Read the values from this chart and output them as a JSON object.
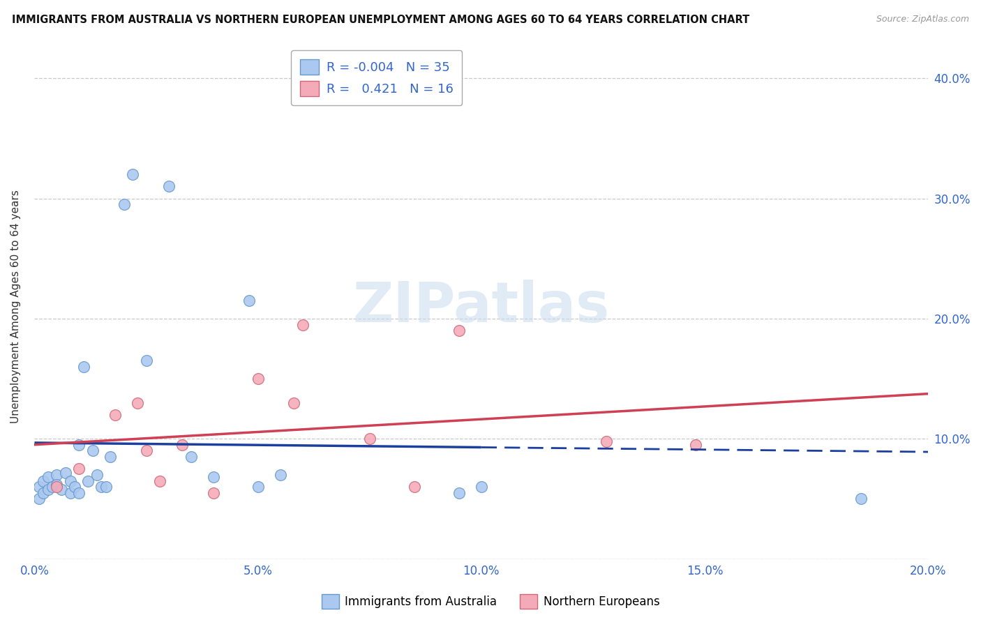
{
  "title": "IMMIGRANTS FROM AUSTRALIA VS NORTHERN EUROPEAN UNEMPLOYMENT AMONG AGES 60 TO 64 YEARS CORRELATION CHART",
  "source": "Source: ZipAtlas.com",
  "ylabel": "Unemployment Among Ages 60 to 64 years",
  "xlim": [
    0.0,
    0.2
  ],
  "ylim": [
    0.0,
    0.42
  ],
  "xticks": [
    0.0,
    0.05,
    0.1,
    0.15,
    0.2
  ],
  "yticks": [
    0.0,
    0.1,
    0.2,
    0.3,
    0.4
  ],
  "xtick_labels": [
    "0.0%",
    "5.0%",
    "10.0%",
    "15.0%",
    "20.0%"
  ],
  "ytick_labels_left": [
    "",
    "",
    "",
    "",
    ""
  ],
  "ytick_labels_right": [
    "",
    "10.0%",
    "20.0%",
    "30.0%",
    "40.0%"
  ],
  "grid_color": "#c8c8c8",
  "background_color": "#ffffff",
  "watermark_text": "ZIPatlas",
  "legend_label_blue": "Immigrants from Australia",
  "legend_label_pink": "Northern Europeans",
  "R_blue": "-0.004",
  "N_blue": "35",
  "R_pink": "0.421",
  "N_pink": "16",
  "blue_scatter_x": [
    0.001,
    0.001,
    0.002,
    0.002,
    0.003,
    0.003,
    0.004,
    0.005,
    0.005,
    0.006,
    0.007,
    0.008,
    0.008,
    0.009,
    0.01,
    0.01,
    0.011,
    0.012,
    0.013,
    0.014,
    0.015,
    0.016,
    0.017,
    0.02,
    0.022,
    0.025,
    0.03,
    0.035,
    0.04,
    0.048,
    0.05,
    0.055,
    0.095,
    0.1,
    0.185
  ],
  "blue_scatter_y": [
    0.06,
    0.05,
    0.065,
    0.055,
    0.058,
    0.068,
    0.06,
    0.07,
    0.062,
    0.058,
    0.072,
    0.055,
    0.065,
    0.06,
    0.055,
    0.095,
    0.16,
    0.065,
    0.09,
    0.07,
    0.06,
    0.06,
    0.085,
    0.295,
    0.32,
    0.165,
    0.31,
    0.085,
    0.068,
    0.215,
    0.06,
    0.07,
    0.055,
    0.06,
    0.05
  ],
  "pink_scatter_x": [
    0.005,
    0.01,
    0.018,
    0.023,
    0.025,
    0.028,
    0.033,
    0.04,
    0.05,
    0.058,
    0.06,
    0.075,
    0.085,
    0.095,
    0.128,
    0.148
  ],
  "pink_scatter_y": [
    0.06,
    0.075,
    0.12,
    0.13,
    0.09,
    0.065,
    0.095,
    0.055,
    0.15,
    0.13,
    0.195,
    0.1,
    0.06,
    0.19,
    0.098,
    0.095
  ],
  "blue_color": "#aac8f0",
  "blue_edge_color": "#6699cc",
  "pink_color": "#f4aab8",
  "pink_edge_color": "#d06878",
  "blue_line_color": "#1a3f9f",
  "blue_line_dash": [
    8,
    4
  ],
  "pink_line_color": "#d04055",
  "axis_color": "#3366cc",
  "marker_size": 130,
  "title_fontsize": 10.5,
  "axis_label_fontsize": 11,
  "tick_fontsize": 12
}
